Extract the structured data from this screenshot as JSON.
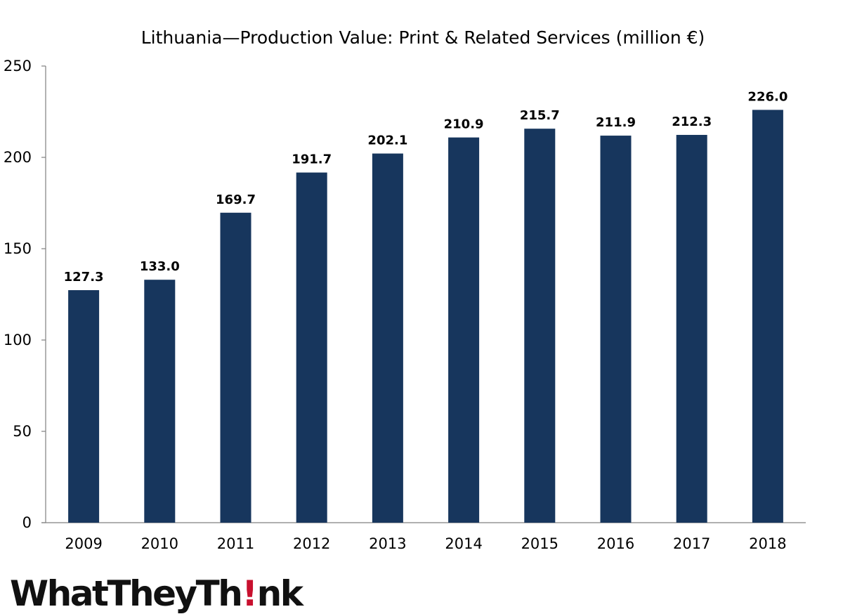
{
  "chart_data": {
    "type": "bar",
    "title": "Lithuania—Production Value: Print & Related Services  (million €)",
    "xlabel": "",
    "ylabel": "",
    "categories": [
      "2009",
      "2010",
      "2011",
      "2012",
      "2013",
      "2014",
      "2015",
      "2016",
      "2017",
      "2018"
    ],
    "values": [
      127.3,
      133.0,
      169.7,
      191.7,
      202.1,
      210.9,
      215.7,
      211.9,
      212.3,
      226.0
    ],
    "data_labels": [
      "127.3",
      "133.0",
      "169.7",
      "191.7",
      "202.1",
      "210.9",
      "215.7",
      "211.9",
      "212.3",
      "226.0"
    ],
    "ylim": [
      0,
      250
    ],
    "yticks": [
      0,
      50,
      100,
      150,
      200,
      250
    ],
    "ytick_labels": [
      "0",
      "50",
      "100",
      "150",
      "200",
      "250"
    ],
    "grid": false,
    "legend": "none",
    "bar_color": "#17365d",
    "axis_color": "#808080"
  },
  "logo": {
    "text_before": "WhatTheyTh",
    "mark": "!",
    "text_after": "nk",
    "mark_color": "#c8102e"
  }
}
